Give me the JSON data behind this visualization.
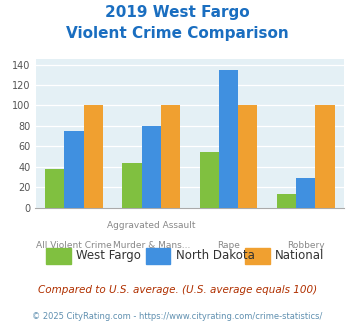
{
  "title_line1": "2019 West Fargo",
  "title_line2": "Violent Crime Comparison",
  "cat_top_labels": [
    "",
    "Aggravated Assault",
    "",
    ""
  ],
  "cat_bot_labels": [
    "All Violent Crime",
    "Murder & Mans...",
    "Rape",
    "Robbery"
  ],
  "west_fargo": [
    38,
    44,
    55,
    14
  ],
  "north_dakota": [
    75,
    80,
    135,
    29
  ],
  "national": [
    100,
    100,
    100,
    100
  ],
  "colors": {
    "west_fargo": "#80c040",
    "north_dakota": "#4090e0",
    "national": "#f0a030"
  },
  "ylim": [
    0,
    145
  ],
  "yticks": [
    0,
    20,
    40,
    60,
    80,
    100,
    120,
    140
  ],
  "legend_labels": [
    "West Fargo",
    "North Dakota",
    "National"
  ],
  "footnote1": "Compared to U.S. average. (U.S. average equals 100)",
  "footnote2": "© 2025 CityRating.com - https://www.cityrating.com/crime-statistics/",
  "title_color": "#1a6ec0",
  "footnote1_color": "#b03000",
  "footnote2_color": "#6090b0",
  "plot_bg_color": "#e4f0f5"
}
